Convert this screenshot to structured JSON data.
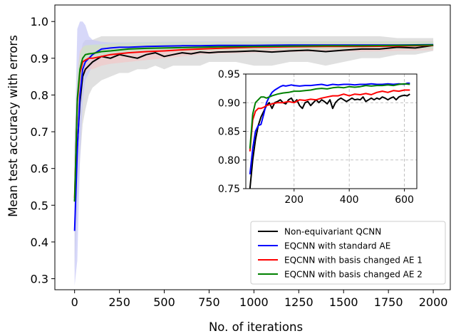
{
  "chart_data": [
    {
      "type": "line",
      "title": "",
      "xlabel": "No. of iterations",
      "ylabel": "Mean test accuracy with errors",
      "xlim": [
        -110,
        2095
      ],
      "ylim": [
        0.27,
        1.045
      ],
      "xticks": [
        0,
        250,
        500,
        750,
        1000,
        1250,
        1500,
        1750,
        2000
      ],
      "yticks": [
        0.3,
        0.4,
        0.5,
        0.6,
        0.7,
        0.8,
        0.9,
        1.0
      ],
      "ytick_labels": [
        "0.3",
        "0.4",
        "0.5",
        "0.6",
        "0.7",
        "0.8",
        "0.9",
        "1.0"
      ],
      "grid": false,
      "legend_position": "lower-right",
      "series": [
        {
          "name": "Non-equivariant QCNN",
          "color": "#000000",
          "band_color": "#d3d3d3",
          "x": [
            0,
            15,
            30,
            45,
            60,
            80,
            100,
            150,
            200,
            250,
            300,
            350,
            400,
            450,
            500,
            550,
            600,
            650,
            700,
            750,
            800,
            900,
            1000,
            1100,
            1200,
            1300,
            1400,
            1500,
            1600,
            1700,
            1800,
            1900,
            2000
          ],
          "y": [
            0.51,
            0.66,
            0.78,
            0.85,
            0.87,
            0.88,
            0.89,
            0.905,
            0.9,
            0.91,
            0.905,
            0.9,
            0.91,
            0.915,
            0.905,
            0.91,
            0.915,
            0.912,
            0.917,
            0.915,
            0.917,
            0.918,
            0.92,
            0.917,
            0.92,
            0.922,
            0.918,
            0.922,
            0.925,
            0.925,
            0.93,
            0.928,
            0.935
          ],
          "band_low": [
            0.32,
            0.5,
            0.62,
            0.72,
            0.76,
            0.8,
            0.82,
            0.84,
            0.85,
            0.86,
            0.86,
            0.87,
            0.87,
            0.88,
            0.87,
            0.88,
            0.88,
            0.88,
            0.88,
            0.89,
            0.89,
            0.89,
            0.88,
            0.88,
            0.89,
            0.89,
            0.88,
            0.89,
            0.9,
            0.9,
            0.91,
            0.91,
            0.92
          ],
          "band_high": [
            0.7,
            0.8,
            0.9,
            0.94,
            0.95,
            0.95,
            0.95,
            0.96,
            0.96,
            0.96,
            0.96,
            0.96,
            0.96,
            0.96,
            0.96,
            0.96,
            0.96,
            0.96,
            0.96,
            0.96,
            0.96,
            0.96,
            0.96,
            0.96,
            0.96,
            0.96,
            0.96,
            0.96,
            0.96,
            0.96,
            0.955,
            0.955,
            0.955
          ]
        },
        {
          "name": "EQCNN with standard AE",
          "color": "#0000ff",
          "band_color": "#c6c8f7",
          "x": [
            0,
            15,
            30,
            45,
            60,
            80,
            100,
            150,
            200,
            250,
            300,
            400,
            500,
            600,
            700,
            800,
            900,
            1000,
            1200,
            1400,
            1600,
            1800,
            2000
          ],
          "y": [
            0.43,
            0.65,
            0.8,
            0.87,
            0.89,
            0.9,
            0.91,
            0.925,
            0.928,
            0.93,
            0.93,
            0.932,
            0.933,
            0.934,
            0.934,
            0.935,
            0.935,
            0.935,
            0.936,
            0.936,
            0.936,
            0.936,
            0.937
          ],
          "band_low": [
            0.28,
            0.35,
            0.62,
            0.78,
            0.84,
            0.86,
            0.88,
            0.9,
            0.91,
            0.915,
            0.915,
            0.92,
            0.92,
            0.922,
            0.922,
            0.924,
            0.924,
            0.924,
            0.925,
            0.925,
            0.925,
            0.925,
            0.926
          ],
          "band_high": [
            0.66,
            0.98,
            1.0,
            1.0,
            0.99,
            0.96,
            0.95,
            0.945,
            0.943,
            0.943,
            0.943,
            0.944,
            0.945,
            0.945,
            0.946,
            0.946,
            0.946,
            0.946,
            0.946,
            0.946,
            0.946,
            0.946,
            0.946
          ]
        },
        {
          "name": "EQCNN with basis changed AE 1",
          "color": "#ff0000",
          "band_color": "#f2c8c8",
          "x": [
            0,
            15,
            30,
            45,
            60,
            80,
            100,
            150,
            200,
            300,
            400,
            500,
            600,
            700,
            800,
            1000,
            1200,
            1400,
            1600,
            1800,
            2000
          ],
          "y": [
            0.52,
            0.78,
            0.86,
            0.89,
            0.895,
            0.9,
            0.9,
            0.905,
            0.91,
            0.915,
            0.918,
            0.92,
            0.923,
            0.925,
            0.927,
            0.93,
            0.931,
            0.932,
            0.932,
            0.933,
            0.935
          ],
          "band_low": [
            0.45,
            0.7,
            0.8,
            0.85,
            0.86,
            0.87,
            0.87,
            0.88,
            0.885,
            0.89,
            0.895,
            0.9,
            0.905,
            0.91,
            0.912,
            0.915,
            0.917,
            0.918,
            0.918,
            0.92,
            0.922
          ],
          "band_high": [
            0.6,
            0.86,
            0.92,
            0.93,
            0.935,
            0.935,
            0.935,
            0.935,
            0.938,
            0.94,
            0.942,
            0.943,
            0.943,
            0.944,
            0.944,
            0.945,
            0.945,
            0.946,
            0.946,
            0.946,
            0.947
          ]
        },
        {
          "name": "EQCNN with basis changed AE 2",
          "color": "#008000",
          "band_color": "#c9e6c9",
          "x": [
            0,
            15,
            30,
            45,
            60,
            80,
            100,
            150,
            200,
            300,
            400,
            500,
            600,
            700,
            800,
            1000,
            1200,
            1400,
            1600,
            1800,
            2000
          ],
          "y": [
            0.51,
            0.79,
            0.87,
            0.9,
            0.91,
            0.912,
            0.913,
            0.918,
            0.92,
            0.925,
            0.927,
            0.928,
            0.929,
            0.93,
            0.931,
            0.932,
            0.933,
            0.934,
            0.934,
            0.935,
            0.936
          ],
          "band_low": [
            0.45,
            0.72,
            0.83,
            0.87,
            0.89,
            0.895,
            0.9,
            0.905,
            0.91,
            0.915,
            0.917,
            0.918,
            0.919,
            0.92,
            0.921,
            0.922,
            0.923,
            0.924,
            0.924,
            0.925,
            0.926
          ],
          "band_high": [
            0.58,
            0.86,
            0.91,
            0.93,
            0.935,
            0.936,
            0.937,
            0.938,
            0.94,
            0.942,
            0.943,
            0.943,
            0.944,
            0.944,
            0.944,
            0.945,
            0.945,
            0.946,
            0.946,
            0.946,
            0.946
          ]
        }
      ]
    },
    {
      "type": "line",
      "title": "",
      "xlabel": "",
      "ylabel": "",
      "xlim": [
        25,
        645
      ],
      "ylim": [
        0.75,
        0.95
      ],
      "xticks": [
        200,
        400,
        600
      ],
      "yticks": [
        0.75,
        0.8,
        0.85,
        0.9,
        0.95
      ],
      "ytick_labels": [
        "0.75",
        "0.80",
        "0.85",
        "0.90",
        "0.95"
      ],
      "grid": true,
      "series": [
        {
          "color": "#000000",
          "x": [
            40,
            50,
            60,
            70,
            80,
            90,
            100,
            110,
            120,
            130,
            140,
            150,
            160,
            170,
            180,
            190,
            200,
            210,
            220,
            230,
            240,
            250,
            260,
            270,
            280,
            290,
            300,
            310,
            320,
            330,
            340,
            350,
            360,
            370,
            380,
            390,
            400,
            410,
            420,
            430,
            440,
            450,
            460,
            470,
            480,
            490,
            500,
            510,
            520,
            530,
            540,
            550,
            560,
            570,
            580,
            590,
            600,
            610,
            620
          ],
          "y": [
            0.75,
            0.8,
            0.835,
            0.86,
            0.875,
            0.885,
            0.895,
            0.9,
            0.89,
            0.9,
            0.902,
            0.905,
            0.9,
            0.898,
            0.905,
            0.908,
            0.9,
            0.905,
            0.895,
            0.89,
            0.9,
            0.902,
            0.895,
            0.9,
            0.905,
            0.9,
            0.905,
            0.902,
            0.898,
            0.905,
            0.89,
            0.9,
            0.905,
            0.908,
            0.905,
            0.902,
            0.905,
            0.908,
            0.905,
            0.906,
            0.905,
            0.91,
            0.902,
            0.905,
            0.908,
            0.905,
            0.908,
            0.906,
            0.91,
            0.908,
            0.905,
            0.908,
            0.91,
            0.905,
            0.91,
            0.912,
            0.913,
            0.912,
            0.915
          ]
        },
        {
          "color": "#0000ff",
          "x": [
            40,
            50,
            60,
            70,
            80,
            90,
            100,
            110,
            120,
            130,
            140,
            150,
            160,
            170,
            180,
            190,
            200,
            220,
            240,
            260,
            280,
            300,
            320,
            340,
            360,
            380,
            400,
            420,
            440,
            460,
            480,
            500,
            520,
            540,
            560,
            580,
            600,
            610,
            620
          ],
          "y": [
            0.775,
            0.82,
            0.85,
            0.86,
            0.862,
            0.88,
            0.9,
            0.91,
            0.918,
            0.922,
            0.925,
            0.928,
            0.93,
            0.929,
            0.93,
            0.931,
            0.93,
            0.929,
            0.93,
            0.93,
            0.931,
            0.932,
            0.93,
            0.932,
            0.931,
            0.932,
            0.932,
            0.931,
            0.932,
            0.932,
            0.933,
            0.932,
            0.932,
            0.933,
            0.932,
            0.933,
            0.932,
            0.934,
            0.934
          ]
        },
        {
          "color": "#ff0000",
          "x": [
            40,
            50,
            60,
            70,
            80,
            90,
            100,
            120,
            140,
            160,
            180,
            200,
            220,
            240,
            260,
            280,
            300,
            320,
            340,
            360,
            380,
            400,
            420,
            440,
            460,
            480,
            500,
            520,
            540,
            560,
            580,
            600,
            620
          ],
          "y": [
            0.815,
            0.87,
            0.885,
            0.89,
            0.89,
            0.892,
            0.895,
            0.898,
            0.9,
            0.9,
            0.902,
            0.9,
            0.905,
            0.904,
            0.906,
            0.905,
            0.908,
            0.91,
            0.912,
            0.912,
            0.915,
            0.912,
            0.915,
            0.914,
            0.916,
            0.914,
            0.918,
            0.92,
            0.918,
            0.921,
            0.92,
            0.922,
            0.922
          ]
        },
        {
          "color": "#008000",
          "x": [
            40,
            50,
            60,
            70,
            80,
            90,
            100,
            120,
            140,
            160,
            180,
            200,
            220,
            240,
            260,
            280,
            300,
            320,
            340,
            360,
            380,
            400,
            420,
            440,
            460,
            480,
            500,
            520,
            540,
            560,
            580,
            600,
            620
          ],
          "y": [
            0.82,
            0.88,
            0.9,
            0.905,
            0.91,
            0.91,
            0.908,
            0.912,
            0.915,
            0.917,
            0.918,
            0.92,
            0.92,
            0.921,
            0.922,
            0.924,
            0.925,
            0.924,
            0.926,
            0.927,
            0.926,
            0.928,
            0.927,
            0.928,
            0.93,
            0.929,
            0.93,
            0.93,
            0.931,
            0.93,
            0.932,
            0.933,
            0.932
          ]
        }
      ]
    }
  ]
}
